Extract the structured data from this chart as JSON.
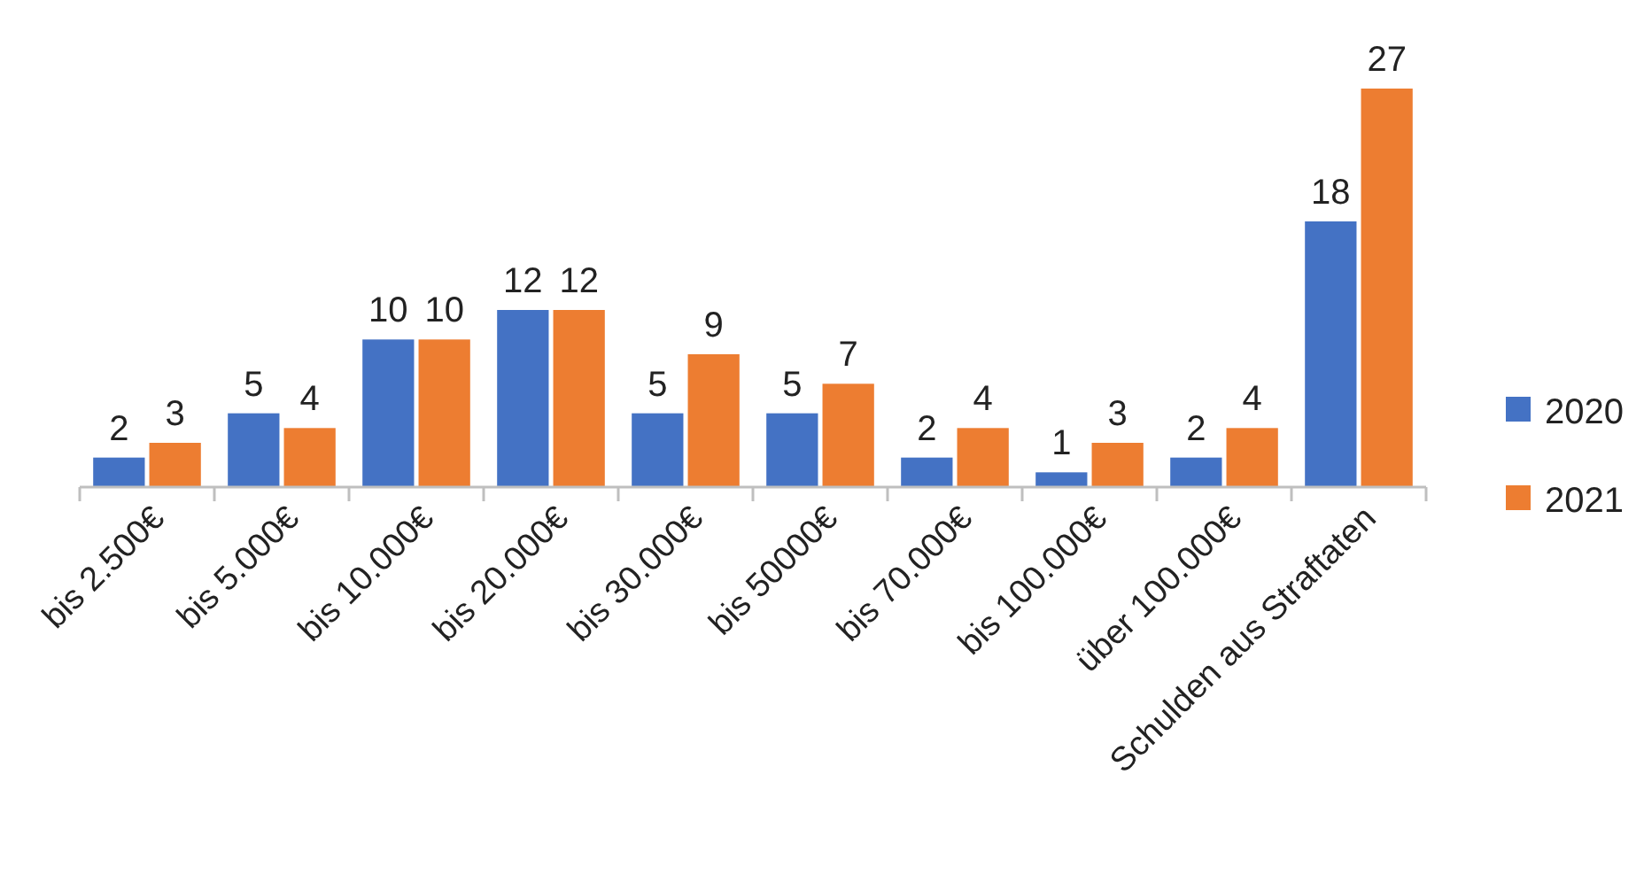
{
  "chart_data": {
    "type": "bar",
    "categories": [
      "bis 2.500€",
      "bis 5.000€",
      "bis 10.000€",
      "bis 20.000€",
      "bis 30.000€",
      "bis 50000€",
      "bis 70.000€",
      "bis 100.000€",
      "über 100.000€",
      "Schulden aus Straftaten"
    ],
    "series": [
      {
        "name": "2020",
        "color": "#4472c4",
        "values": [
          2,
          5,
          10,
          12,
          5,
          5,
          2,
          1,
          2,
          18
        ]
      },
      {
        "name": "2021",
        "color": "#ed7d31",
        "values": [
          3,
          4,
          10,
          12,
          9,
          7,
          4,
          3,
          4,
          27
        ]
      }
    ],
    "data_labels": true,
    "legend": "right"
  }
}
